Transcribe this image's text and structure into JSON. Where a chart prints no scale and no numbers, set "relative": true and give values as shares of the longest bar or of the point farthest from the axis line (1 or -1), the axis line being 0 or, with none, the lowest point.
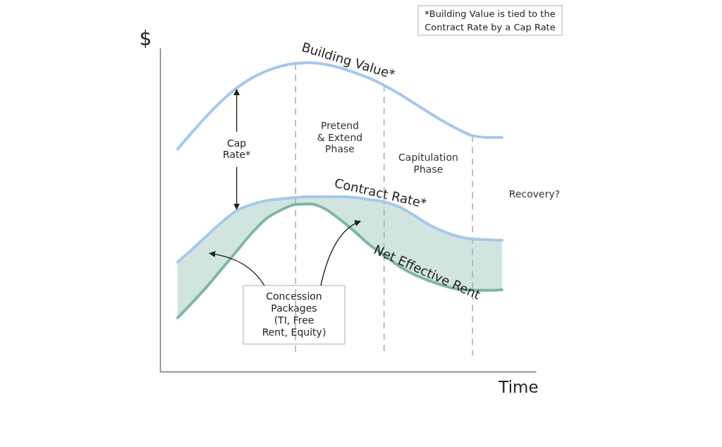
{
  "chart_data": {
    "type": "line",
    "relative": true,
    "grid": "x",
    "xlabel": "Time",
    "ylabel": "$",
    "categories": [
      null,
      null,
      null,
      null,
      null,
      null,
      null,
      null,
      null,
      null,
      null,
      null,
      null,
      null,
      null,
      null,
      null,
      null,
      null,
      null,
      null,
      null,
      null
    ],
    "series": [
      {
        "name": "Building Value*",
        "color": "#a6c8ea",
        "values": [
          0.721,
          0.776,
          0.829,
          0.877,
          0.918,
          0.95,
          0.973,
          0.989,
          0.998,
          1,
          0.995,
          0.984,
          0.968,
          0.95,
          0.927,
          0.9,
          0.87,
          0.84,
          0.811,
          0.785,
          0.764,
          0.758,
          0.758
        ]
      },
      {
        "name": "Contract Rate*",
        "color": "#a6c8ea",
        "values": [
          0.354,
          0.397,
          0.441,
          0.484,
          0.521,
          0.541,
          0.553,
          0.559,
          0.564,
          0.566,
          0.566,
          0.566,
          0.564,
          0.557,
          0.55,
          0.534,
          0.507,
          0.477,
          0.454,
          0.438,
          0.429,
          0.427,
          0.425
        ]
      },
      {
        "name": "Net Effective Rent",
        "color": "#7fb5a7",
        "values": [
          0.174,
          0.224,
          0.276,
          0.333,
          0.39,
          0.447,
          0.495,
          0.523,
          0.541,
          0.543,
          0.527,
          0.493,
          0.454,
          0.411,
          0.377,
          0.342,
          0.315,
          0.295,
          0.279,
          0.267,
          0.263,
          0.263,
          0.265
        ],
        "lower": [
          0.174,
          0.224,
          0.276,
          0.333,
          0.39,
          0.447,
          0.495,
          0.523,
          0.541,
          0.543,
          0.527,
          0.493,
          0.454,
          0.411,
          0.377,
          0.342,
          0.315,
          0.295,
          0.279,
          0.267,
          0.263,
          0.263,
          0.265
        ],
        "upper": [
          0.354,
          0.397,
          0.441,
          0.484,
          0.521,
          0.541,
          0.553,
          0.559,
          0.564,
          0.566,
          0.566,
          0.566,
          0.564,
          0.557,
          0.55,
          0.534,
          0.507,
          0.477,
          0.454,
          0.438,
          0.429,
          0.427,
          0.425
        ]
      }
    ],
    "annotations": [
      "*Building Value is tied to the Contract Rate by a Cap Rate",
      "Cap Rate*",
      "Pretend & Extend Phase",
      "Capitulation Phase",
      "Recovery?",
      "Concession Packages (TI, Free Rent, Equity)"
    ]
  }
}
